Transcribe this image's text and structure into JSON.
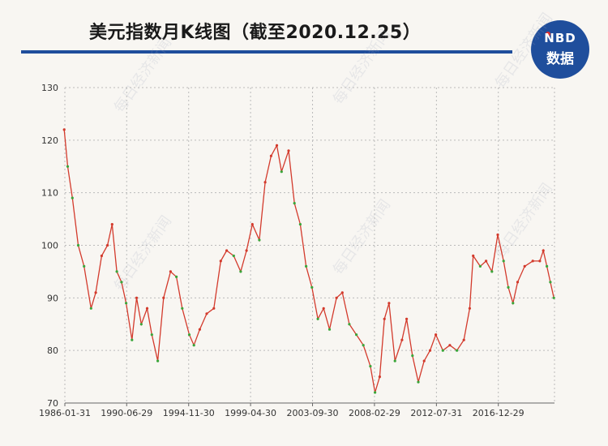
{
  "title": "美元指数月K线图（截至2020.12.25）",
  "logo": {
    "top": "NBD",
    "bottom": "数据"
  },
  "watermark": "每日经济新闻",
  "colors": {
    "up": "#d33a2c",
    "down": "#3aa63a",
    "accent": "#1f4e9c"
  },
  "chart_data": {
    "type": "candlestick",
    "x_start": "1986-01-31",
    "x_end": "2020-12-31",
    "x_ticks": [
      "1986-01-31",
      "1990-06-29",
      "1994-11-30",
      "1999-04-30",
      "2003-09-30",
      "2008-02-29",
      "2012-07-31",
      "2016-12-29"
    ],
    "y_ticks": [
      70,
      80,
      90,
      100,
      110,
      120,
      130
    ],
    "ylim": [
      70,
      130
    ],
    "grid": true,
    "series": [
      {
        "x": [
          "1986-01",
          "1986-04",
          "1986-08",
          "1987-01",
          "1987-06",
          "1987-12",
          "1988-04",
          "1988-09",
          "1989-02",
          "1989-06",
          "1989-10",
          "1990-02",
          "1990-06",
          "1990-11",
          "1991-03",
          "1991-07",
          "1991-12",
          "1992-04",
          "1992-09",
          "1993-02",
          "1993-08",
          "1994-01",
          "1994-06",
          "1994-12",
          "1995-04",
          "1995-09",
          "1996-03",
          "1996-09",
          "1997-03",
          "1997-08",
          "1998-02",
          "1998-08",
          "1999-01",
          "1999-06",
          "1999-12",
          "2000-05",
          "2000-10",
          "2001-03",
          "2001-07",
          "2002-01",
          "2002-06",
          "2002-11",
          "2003-04",
          "2003-09",
          "2004-02",
          "2004-07",
          "2004-12",
          "2005-06",
          "2005-11",
          "2006-05",
          "2006-11",
          "2007-05",
          "2007-11",
          "2008-03",
          "2008-07",
          "2008-11",
          "2009-03",
          "2009-08",
          "2010-02",
          "2010-06",
          "2010-11",
          "2011-04",
          "2011-09",
          "2012-02",
          "2012-07",
          "2013-01",
          "2013-07",
          "2014-01",
          "2014-07",
          "2014-12",
          "2015-03",
          "2015-09",
          "2016-02",
          "2016-07",
          "2016-12",
          "2017-05",
          "2017-09",
          "2018-01",
          "2018-05",
          "2018-11",
          "2019-06",
          "2019-12",
          "2020-03",
          "2020-06",
          "2020-09",
          "2020-12"
        ],
        "y": [
          122,
          115,
          109,
          100,
          96,
          88,
          91,
          98,
          100,
          104,
          95,
          93,
          89,
          82,
          90,
          85,
          88,
          83,
          78,
          90,
          95,
          94,
          88,
          83,
          81,
          84,
          87,
          88,
          97,
          99,
          98,
          95,
          99,
          104,
          101,
          112,
          117,
          119,
          114,
          118,
          108,
          104,
          96,
          92,
          86,
          88,
          84,
          90,
          91,
          85,
          83,
          81,
          77,
          72,
          75,
          86,
          89,
          78,
          82,
          86,
          79,
          74,
          78,
          80,
          83,
          80,
          81,
          80,
          82,
          88,
          98,
          96,
          97,
          95,
          102,
          97,
          92,
          89,
          93,
          96,
          97,
          97,
          99,
          96,
          93,
          90
        ]
      }
    ]
  }
}
